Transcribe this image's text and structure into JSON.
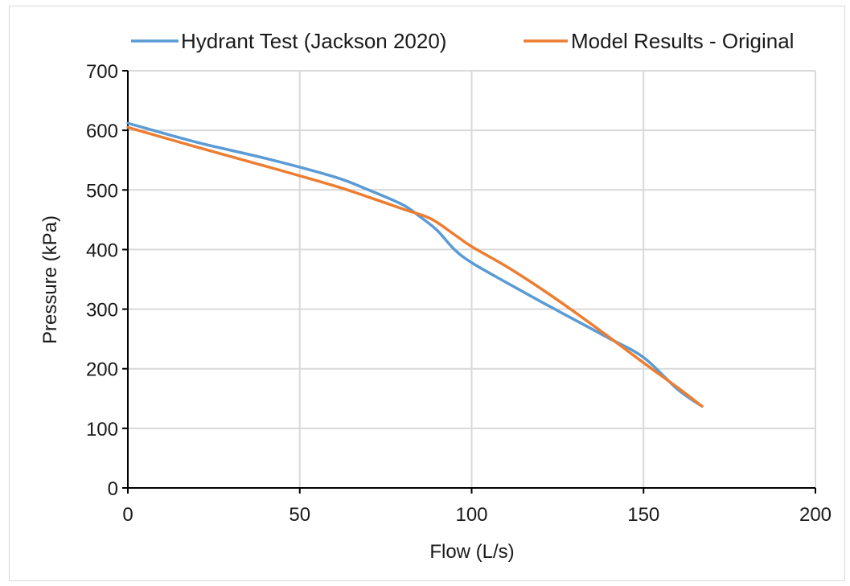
{
  "chart_data": {
    "type": "line",
    "title": "",
    "xlabel": "Flow (L/s)",
    "ylabel": "Pressure (kPa)",
    "xlim": [
      0,
      200
    ],
    "ylim": [
      0,
      700
    ],
    "xticks": [
      0,
      50,
      100,
      150,
      200
    ],
    "yticks": [
      0,
      100,
      200,
      300,
      400,
      500,
      600,
      700
    ],
    "grid": "vertical and horizontal major gridlines",
    "legend_position": "top",
    "series": [
      {
        "name": "Hydrant Test (Jackson 2020)",
        "color": "#5B9BD5",
        "x": [
          0,
          20,
          40,
          60,
          70,
          80,
          85,
          90,
          95,
          100,
          110,
          120,
          130,
          140,
          150,
          160,
          167
        ],
        "y": [
          612,
          580,
          553,
          522,
          500,
          475,
          455,
          432,
          400,
          378,
          345,
          313,
          282,
          251,
          219,
          165,
          137
        ]
      },
      {
        "name": "Model Results - Original",
        "color": "#ED7D31",
        "x": [
          0,
          20,
          40,
          60,
          70,
          80,
          88,
          95,
          100,
          110,
          120,
          130,
          140,
          150,
          160,
          167
        ],
        "y": [
          605,
          572,
          540,
          507,
          488,
          468,
          452,
          425,
          405,
          372,
          335,
          295,
          253,
          210,
          168,
          137
        ]
      }
    ]
  }
}
